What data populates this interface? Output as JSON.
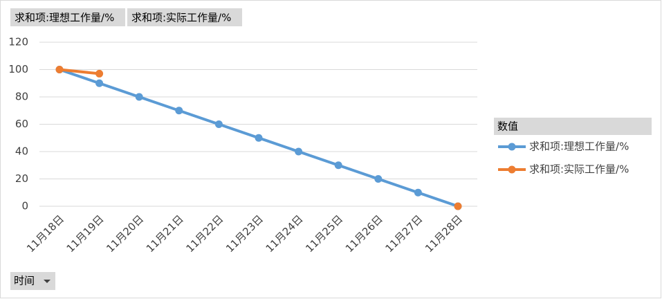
{
  "field_buttons": [
    "求和项:理想工作量/%",
    "求和项:实际工作量/%"
  ],
  "chart_data": {
    "type": "line",
    "categories": [
      "11月18日",
      "11月19日",
      "11月20日",
      "11月21日",
      "11月22日",
      "11月23日",
      "11月24日",
      "11月25日",
      "11月26日",
      "11月27日",
      "11月28日"
    ],
    "series": [
      {
        "name": "求和项:理想工作量/%",
        "color": "#5b9bd5",
        "values": [
          100,
          90,
          80,
          70,
          60,
          50,
          40,
          30,
          20,
          10,
          0
        ]
      },
      {
        "name": "求和项:实际工作量/%",
        "color": "#ed7d31",
        "values": [
          100,
          97,
          null,
          null,
          null,
          null,
          null,
          null,
          null,
          null,
          0
        ]
      }
    ],
    "ylim": [
      0,
      120
    ],
    "yticks": [
      0,
      20,
      40,
      60,
      80,
      100,
      120
    ],
    "grid": true,
    "legend_title": "数值",
    "legend_position": "right",
    "x_field_button": "时间"
  }
}
